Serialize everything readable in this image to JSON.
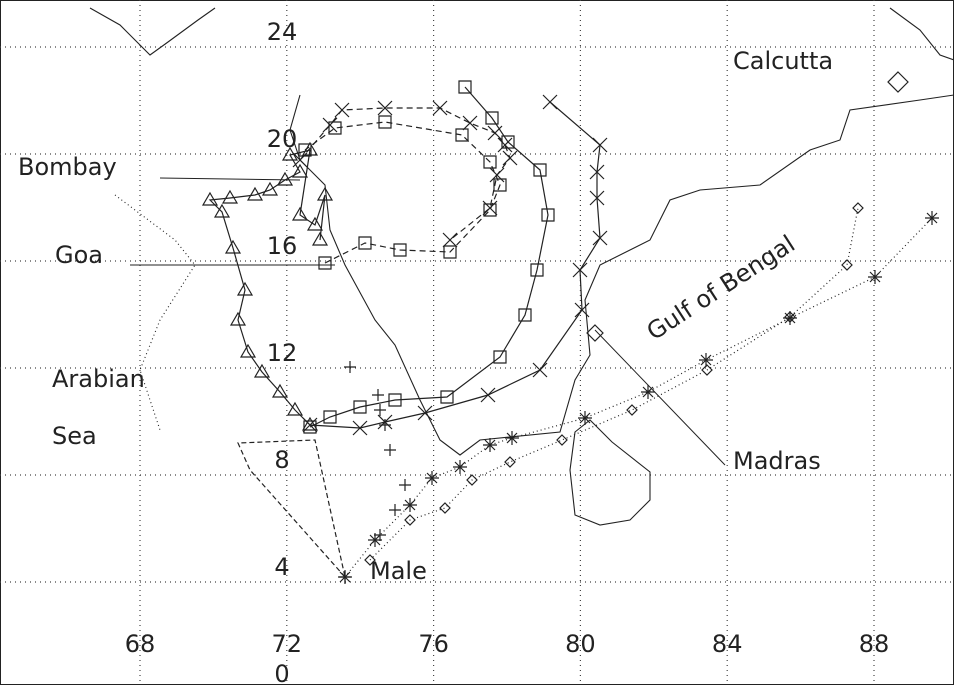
{
  "map": {
    "lon_ticks": [
      68,
      72,
      76,
      80,
      84,
      88
    ],
    "lat_ticks": [
      0,
      4,
      8,
      12,
      16,
      20,
      24
    ],
    "places": [
      {
        "label": "Calcutta"
      },
      {
        "label": "Bombay"
      },
      {
        "label": "Goa"
      },
      {
        "label": "Arabian"
      },
      {
        "label": "Sea"
      },
      {
        "label": "Gulf of Bengal"
      },
      {
        "label": "Madras"
      },
      {
        "label": "Male"
      }
    ]
  }
}
